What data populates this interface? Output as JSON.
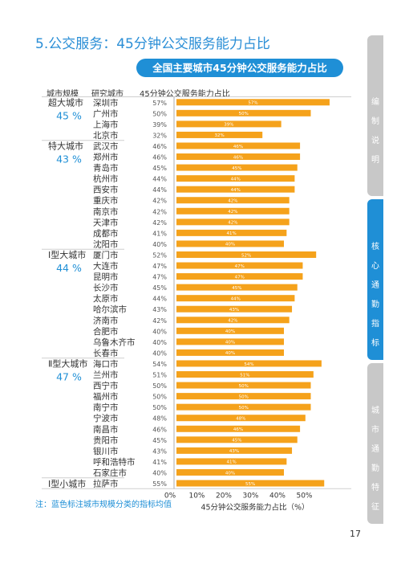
{
  "page": {
    "section_title": "5.公交服务：45分钟公交服务能力占比",
    "page_number": "17",
    "note": "注：蓝色标注城市规模分类的指标均值",
    "sidebar": [
      {
        "label": "编制说明",
        "active": false
      },
      {
        "label": "核心通勤指标",
        "active": true
      },
      {
        "label": "城市通勤特征",
        "active": false
      }
    ],
    "colors": {
      "accent": "#1f8fd6",
      "bar": "#f5a21b",
      "tab_inactive": "#c8c8c8",
      "divider": "#cfcfcf"
    }
  },
  "chart_data": {
    "type": "bar",
    "orientation": "horizontal",
    "title": "全国主要城市45分钟公交服务能力占比",
    "xlabel": "45分钟公交服务能力占比（%）",
    "column_headers": [
      "城市规模",
      "研究城市",
      "45分钟公交服务能力占比"
    ],
    "xlim": [
      0,
      60
    ],
    "x_ticks": [
      "0%",
      "10%",
      "20%",
      "30%",
      "40%",
      "50%"
    ],
    "grid": false,
    "groups": [
      {
        "name": "超大城市",
        "mean": "45 %",
        "rows": 4
      },
      {
        "name": "特大城市",
        "mean": "43 %",
        "rows": 10
      },
      {
        "name": "Ⅰ型大城市",
        "mean": "44 %",
        "rows": 10
      },
      {
        "name": "Ⅱ型大城市",
        "mean": "47 %",
        "rows": 11
      },
      {
        "name": "Ⅰ型小城市",
        "mean": "",
        "rows": 1
      }
    ],
    "categories": [
      "深圳市",
      "广州市",
      "上海市",
      "北京市",
      "武汉市",
      "郑州市",
      "青岛市",
      "杭州市",
      "西安市",
      "重庆市",
      "南京市",
      "天津市",
      "成都市",
      "沈阳市",
      "厦门市",
      "大连市",
      "昆明市",
      "长沙市",
      "太原市",
      "哈尔滨市",
      "济南市",
      "合肥市",
      "乌鲁木齐市",
      "长春市",
      "海口市",
      "兰州市",
      "西宁市",
      "福州市",
      "南宁市",
      "宁波市",
      "南昌市",
      "贵阳市",
      "银川市",
      "呼和浩特市",
      "石家庄市",
      "拉萨市"
    ],
    "values": [
      57,
      50,
      39,
      32,
      46,
      46,
      45,
      44,
      44,
      42,
      42,
      42,
      41,
      40,
      52,
      47,
      47,
      45,
      44,
      43,
      42,
      40,
      40,
      40,
      54,
      51,
      50,
      50,
      50,
      48,
      46,
      45,
      43,
      41,
      40,
      55
    ],
    "value_labels": [
      "57%",
      "50%",
      "39%",
      "32%",
      "46%",
      "46%",
      "45%",
      "44%",
      "44%",
      "42%",
      "42%",
      "42%",
      "41%",
      "40%",
      "52%",
      "47%",
      "47%",
      "45%",
      "44%",
      "43%",
      "42%",
      "40%",
      "40%",
      "40%",
      "54%",
      "51%",
      "50%",
      "50%",
      "50%",
      "48%",
      "46%",
      "45%",
      "43%",
      "41%",
      "40%",
      "55%"
    ]
  }
}
